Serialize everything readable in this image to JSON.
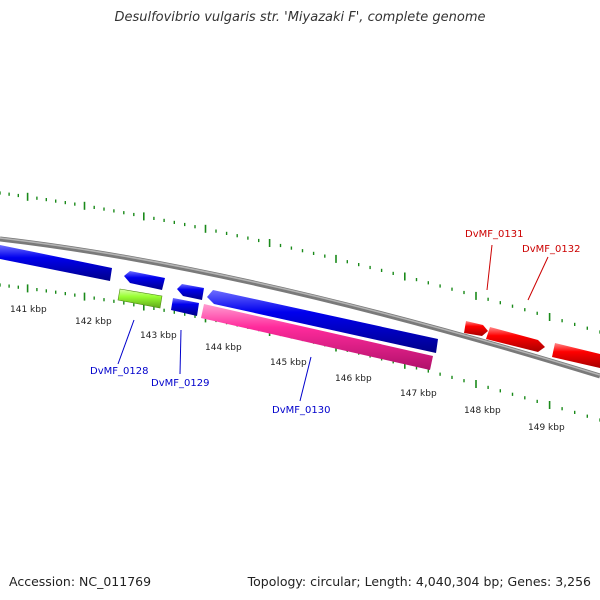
{
  "title": "Desulfovibrio vulgaris str. 'Miyazaki F', complete genome",
  "footer": {
    "accession": "Accession: NC_011769",
    "summary": "Topology: circular; Length: 4,040,304 bp; Genes: 3,256"
  },
  "colors": {
    "backbone": "#808080",
    "ticks": "#1a8a1a",
    "forward_gene": "#ff0000",
    "reverse_gene": "#0000ee",
    "cds_pink": "#ff2b9c",
    "cds_green": "#99ff33",
    "label_blue": "#0000cc",
    "label_red": "#cc0000"
  },
  "kbp_labels": [
    "141 kbp",
    "142 kbp",
    "143 kbp",
    "144 kbp",
    "145 kbp",
    "146 kbp",
    "147 kbp",
    "148 kbp",
    "149 kbp"
  ],
  "gene_labels": [
    "DvMF_0128",
    "DvMF_0129",
    "DvMF_0130",
    "DvMF_0131",
    "DvMF_0132"
  ]
}
